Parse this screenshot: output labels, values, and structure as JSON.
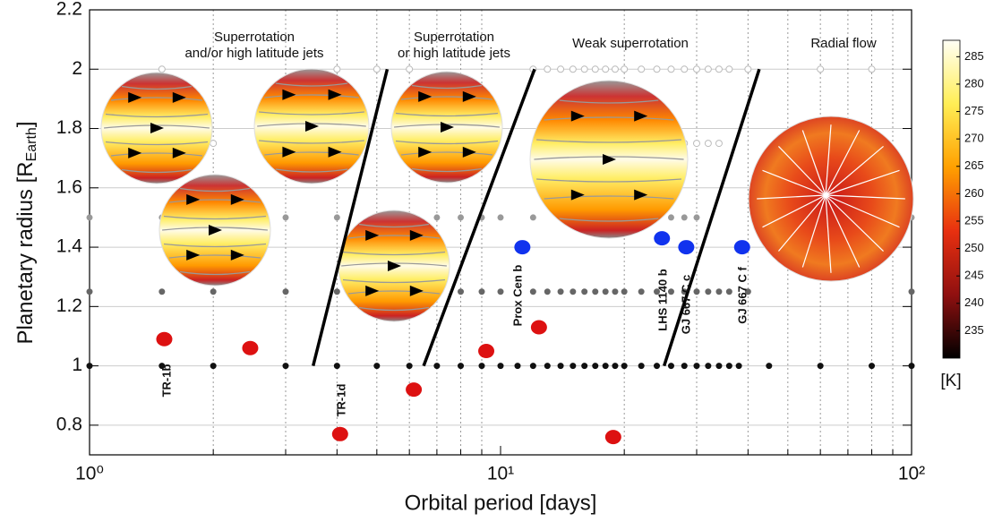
{
  "chart_data": {
    "type": "scatter",
    "xlabel": "Orbital period [days]",
    "ylabel": {
      "text": "Planetary radius [R",
      "sub": "Earth",
      "end": "]"
    },
    "xscale": "log",
    "xlim": [
      1,
      100
    ],
    "xticks": [
      {
        "value": 1,
        "label": "10⁰"
      },
      {
        "value": 10,
        "label": "10¹"
      },
      {
        "value": 100,
        "label": "10²"
      }
    ],
    "xminor": [
      2,
      3,
      4,
      5,
      6,
      7,
      8,
      9,
      20,
      30,
      40,
      50,
      60,
      70,
      80,
      90
    ],
    "ylim": [
      0.7,
      2.2
    ],
    "yticks": [
      0.8,
      1,
      1.2,
      1.4,
      1.6,
      1.8,
      2,
      2.2
    ],
    "grid": true,
    "regions": [
      [
        "Superrotation",
        "and/or high latitude jets"
      ],
      [
        "Superrotation",
        "or  high latitude jets"
      ],
      [
        "Weak superrotation"
      ],
      [
        "Radial flow"
      ]
    ],
    "boundaries": [
      {
        "x": [
          3.5,
          5.3
        ],
        "y": [
          1,
          2
        ]
      },
      {
        "x": [
          6.5,
          12.1
        ],
        "y": [
          1,
          2
        ]
      },
      {
        "x": [
          25,
          42.6
        ],
        "y": [
          1,
          2
        ]
      }
    ],
    "simulations": [
      {
        "y": 2,
        "color": "#bbbbbb",
        "x": [
          1.5,
          4,
          5,
          6,
          12,
          13,
          14,
          15,
          16,
          17,
          18,
          19,
          20,
          22,
          24,
          26,
          28,
          30,
          32,
          34,
          36,
          40,
          60,
          80
        ]
      },
      {
        "y": 1.75,
        "color": "#bbbbbb",
        "x": [
          1.5,
          2,
          20,
          22,
          24,
          26,
          28,
          30,
          32,
          34
        ]
      },
      {
        "y": 1.5,
        "color": "#999999",
        "x": [
          1,
          1.5,
          2,
          3,
          4,
          5,
          6,
          7,
          8,
          9,
          10,
          12,
          14,
          16,
          18,
          20,
          22,
          24,
          26,
          28,
          30,
          100
        ]
      },
      {
        "y": 1.25,
        "color": "#666666",
        "x": [
          1,
          1.5,
          2,
          3,
          4,
          5,
          6,
          7,
          8,
          9,
          10,
          12,
          13,
          14,
          15,
          16,
          17,
          18,
          19,
          20,
          22,
          24,
          26,
          28,
          30,
          32,
          34,
          36,
          40,
          100
        ]
      },
      {
        "y": 1,
        "color": "#111111",
        "x": [
          1,
          1.5,
          2,
          3,
          4,
          5,
          6,
          7,
          8,
          9,
          10,
          11,
          12,
          13,
          14,
          15,
          16,
          17,
          18,
          19,
          20,
          22,
          24,
          26,
          28,
          30,
          32,
          34,
          36,
          38,
          45,
          60,
          80,
          100
        ]
      }
    ],
    "series": [
      {
        "color": "#dd1111",
        "x": [
          1.52,
          2.46,
          4.07,
          6.15,
          9.23,
          12.4,
          18.8
        ],
        "values": [
          1.09,
          1.06,
          0.77,
          0.92,
          1.05,
          1.13,
          0.76
        ]
      },
      {
        "color": "#1133ee",
        "x": [
          11.3,
          24.7,
          28.3,
          38.7
        ],
        "values": [
          1.4,
          1.43,
          1.4,
          1.4
        ]
      }
    ],
    "annotations": [
      "TR-1b",
      "TR-1d",
      "Prox Cen b",
      "LHS 1140 b",
      "GJ 667 C c",
      "GJ 667 C f"
    ],
    "colorbar": {
      "label": "[K]",
      "lim": [
        230,
        288
      ],
      "ticks": [
        235,
        240,
        245,
        250,
        255,
        260,
        265,
        270,
        275,
        280,
        285
      ]
    }
  }
}
